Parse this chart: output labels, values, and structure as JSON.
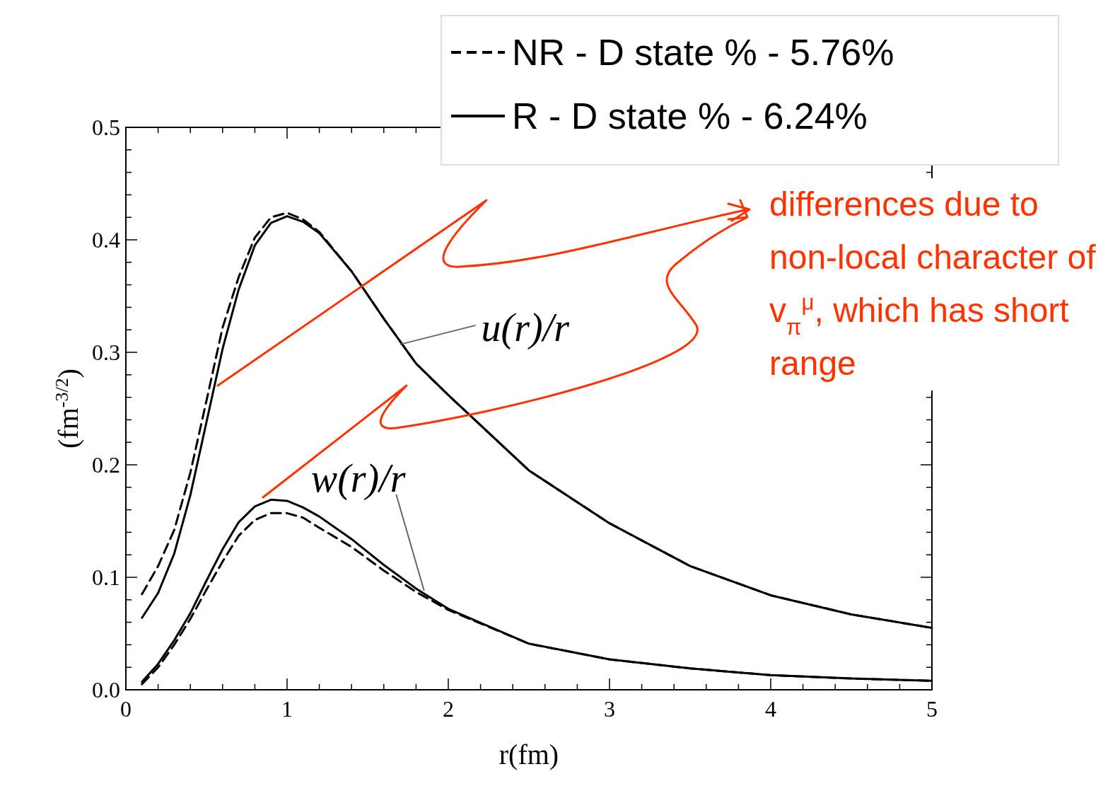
{
  "chart_data": {
    "type": "line",
    "xlabel": "r(fm)",
    "ylabel": "(fm$^{-3/2}$)",
    "xlim": [
      0,
      5
    ],
    "ylim": [
      0,
      0.5
    ],
    "xticks": [
      0,
      {
        "value": 0.2,
        "label": null
      },
      {
        "value": 0.4,
        "label": null
      },
      {
        "value": 0.6,
        "label": null
      },
      {
        "value": 0.8,
        "label": null
      },
      1,
      {
        "value": 1.2,
        "label": null
      },
      {
        "value": 1.4,
        "label": null
      },
      {
        "value": 1.6,
        "label": null
      },
      {
        "value": 1.8,
        "label": null
      },
      2,
      {
        "value": 2.2,
        "label": null
      },
      {
        "value": 2.4,
        "label": null
      },
      {
        "value": 2.6,
        "label": null
      },
      {
        "value": 2.8,
        "label": null
      },
      3,
      {
        "value": 3.2,
        "label": null
      },
      {
        "value": 3.4,
        "label": null
      },
      {
        "value": 3.6,
        "label": null
      },
      {
        "value": 3.8,
        "label": null
      },
      4,
      {
        "value": 4.2,
        "label": null
      },
      {
        "value": 4.4,
        "label": null
      },
      {
        "value": 4.6,
        "label": null
      },
      {
        "value": 4.8,
        "label": null
      },
      5
    ],
    "yticks": [
      {
        "value": 0,
        "label": "0.0"
      },
      {
        "value": 0.02,
        "label": null
      },
      {
        "value": 0.04,
        "label": null
      },
      {
        "value": 0.06,
        "label": null
      },
      {
        "value": 0.08,
        "label": null
      },
      0.1,
      {
        "value": 0.12,
        "label": null
      },
      {
        "value": 0.14,
        "label": null
      },
      {
        "value": 0.16,
        "label": null
      },
      {
        "value": 0.18,
        "label": null
      },
      0.2,
      {
        "value": 0.22,
        "label": null
      },
      {
        "value": 0.24,
        "label": null
      },
      {
        "value": 0.26,
        "label": null
      },
      {
        "value": 0.28,
        "label": null
      },
      0.3,
      {
        "value": 0.32,
        "label": null
      },
      {
        "value": 0.34,
        "label": null
      },
      {
        "value": 0.36,
        "label": null
      },
      {
        "value": 0.38,
        "label": null
      },
      0.4,
      {
        "value": 0.42,
        "label": null
      },
      {
        "value": 0.44,
        "label": null
      },
      {
        "value": 0.46,
        "label": null
      },
      {
        "value": 0.48,
        "label": null
      },
      0.5
    ],
    "grid": false,
    "legend": "top right",
    "marker": "none",
    "series": [
      {
        "name": "NR - D state % - 5.76%",
        "color": "#000000",
        "line_style": "dashed",
        "x": [
          0.1,
          0.2,
          0.3,
          0.4,
          0.5,
          0.6,
          0.7,
          0.8,
          0.9,
          1.0,
          1.1,
          1.2,
          1.4,
          1.6,
          1.8,
          2.0,
          2.5,
          3.0,
          3.5,
          4.0,
          4.5,
          5.0
        ],
        "values": [
          0.085,
          0.11,
          0.142,
          0.193,
          0.257,
          0.322,
          0.367,
          0.402,
          0.42,
          0.424,
          0.418,
          0.407,
          0.372,
          0.33,
          0.29,
          0.262,
          0.195,
          0.148,
          0.11,
          0.084,
          0.067,
          0.055
        ]
      },
      {
        "name": "R - D state % - 6.24%",
        "color": "#000000",
        "line_style": "solid",
        "x": [
          0.1,
          0.2,
          0.3,
          0.4,
          0.5,
          0.6,
          0.7,
          0.8,
          0.9,
          1.0,
          1.1,
          1.2,
          1.4,
          1.6,
          1.8,
          2.0,
          2.5,
          3.0,
          3.5,
          4.0,
          4.5,
          5.0
        ],
        "values": [
          0.064,
          0.086,
          0.121,
          0.173,
          0.238,
          0.303,
          0.356,
          0.395,
          0.415,
          0.421,
          0.416,
          0.406,
          0.372,
          0.33,
          0.29,
          0.262,
          0.195,
          0.148,
          0.11,
          0.084,
          0.067,
          0.055
        ]
      },
      {
        "color": "#000000",
        "line_style": "dashed",
        "x": [
          0.1,
          0.2,
          0.3,
          0.4,
          0.5,
          0.6,
          0.7,
          0.8,
          0.9,
          1.0,
          1.1,
          1.2,
          1.4,
          1.6,
          1.8,
          2.0,
          2.5,
          3.0,
          3.5,
          4.0,
          4.5,
          5.0
        ],
        "values": [
          0.005,
          0.02,
          0.04,
          0.063,
          0.089,
          0.114,
          0.137,
          0.151,
          0.157,
          0.157,
          0.153,
          0.144,
          0.127,
          0.106,
          0.087,
          0.071,
          0.041,
          0.027,
          0.019,
          0.013,
          0.01,
          0.008
        ]
      },
      {
        "color": "#000000",
        "line_style": "solid",
        "x": [
          0.1,
          0.2,
          0.3,
          0.4,
          0.5,
          0.6,
          0.7,
          0.8,
          0.9,
          1.0,
          1.1,
          1.2,
          1.4,
          1.6,
          1.8,
          2.0,
          2.5,
          3.0,
          3.5,
          4.0,
          4.5,
          5.0
        ],
        "values": [
          0.007,
          0.023,
          0.044,
          0.068,
          0.097,
          0.125,
          0.149,
          0.163,
          0.169,
          0.168,
          0.162,
          0.154,
          0.134,
          0.111,
          0.09,
          0.072,
          0.041,
          0.027,
          0.019,
          0.013,
          0.01,
          0.008
        ]
      }
    ],
    "annotations": [
      {
        "text": "u(r)/r",
        "x": 1.7,
        "y": 0.307
      },
      {
        "text": "w(r)/r",
        "x": 1.85,
        "y": 0.088
      },
      "differences due to non-local character of v$_{π}$$^{μ}$, which has short range"
    ]
  }
}
